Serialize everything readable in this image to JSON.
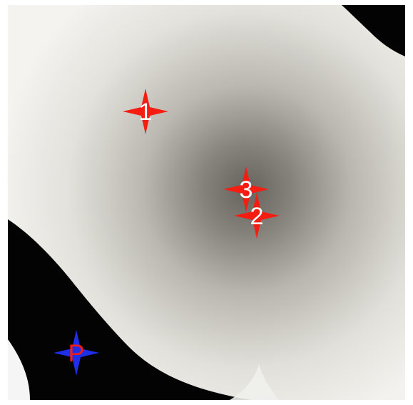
{
  "colors": {
    "field_center": "#5f5d55",
    "field_mid": "#b7b5ad",
    "field_edge": "#f3f2ee",
    "band": "#030303",
    "marker_red": "#f51c12",
    "marker_blue": "#1f2fe8",
    "label_white": "#ffffff",
    "label_red": "#f51c12"
  },
  "markers": [
    {
      "label": "1",
      "color": "marker_red",
      "icon": "four-point-star-icon"
    },
    {
      "label": "2",
      "color": "marker_red",
      "icon": "four-point-star-icon"
    },
    {
      "label": "3",
      "color": "marker_red",
      "icon": "four-point-star-icon"
    },
    {
      "label": "P",
      "color": "marker_blue",
      "icon": "four-point-star-icon"
    }
  ]
}
